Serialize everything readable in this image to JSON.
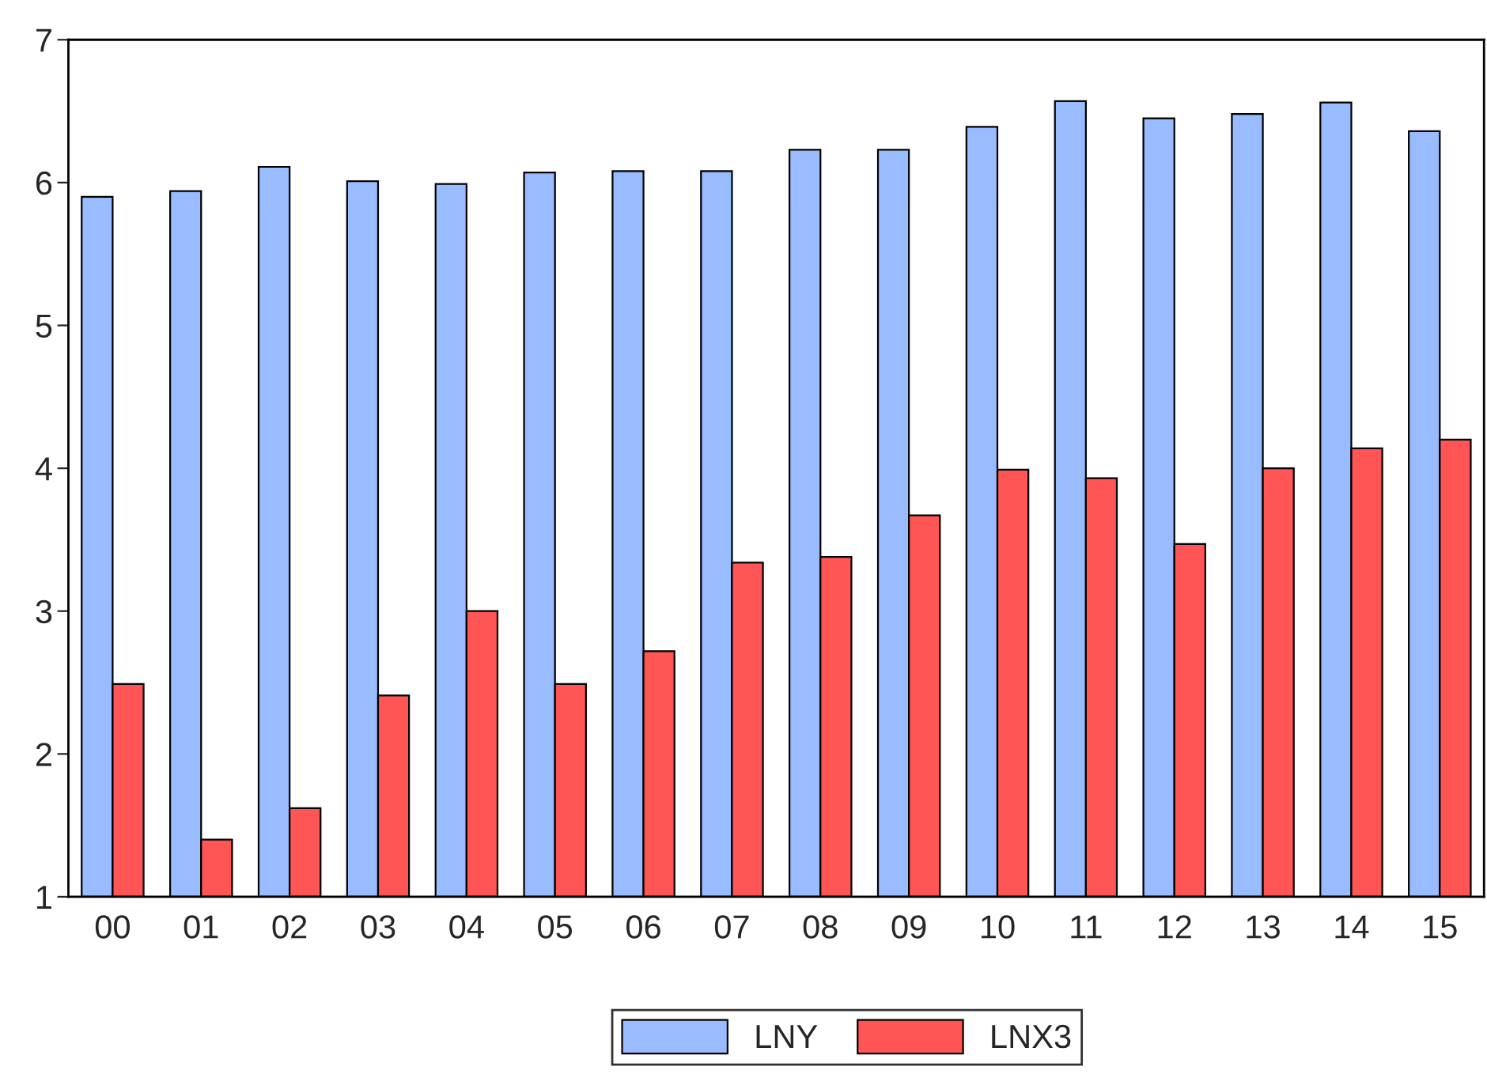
{
  "chart_data": {
    "type": "bar",
    "categories": [
      "00",
      "01",
      "02",
      "03",
      "04",
      "05",
      "06",
      "07",
      "08",
      "09",
      "10",
      "11",
      "12",
      "13",
      "14",
      "15"
    ],
    "series": [
      {
        "name": "LNY",
        "color": "#99bbff",
        "values": [
          5.9,
          5.94,
          6.11,
          6.01,
          5.99,
          6.07,
          6.08,
          6.08,
          6.23,
          6.23,
          6.39,
          6.57,
          6.45,
          6.48,
          6.56,
          6.36
        ]
      },
      {
        "name": "LNX3",
        "color": "#ff5555",
        "values": [
          2.49,
          1.4,
          1.62,
          2.41,
          3.0,
          2.49,
          2.72,
          3.34,
          3.38,
          3.67,
          3.99,
          3.93,
          3.47,
          4.0,
          4.14,
          4.2
        ]
      }
    ],
    "ylim": [
      1,
      7
    ],
    "yticks": [
      1,
      2,
      3,
      4,
      5,
      6,
      7
    ],
    "grid": false,
    "legend": "bottom"
  }
}
